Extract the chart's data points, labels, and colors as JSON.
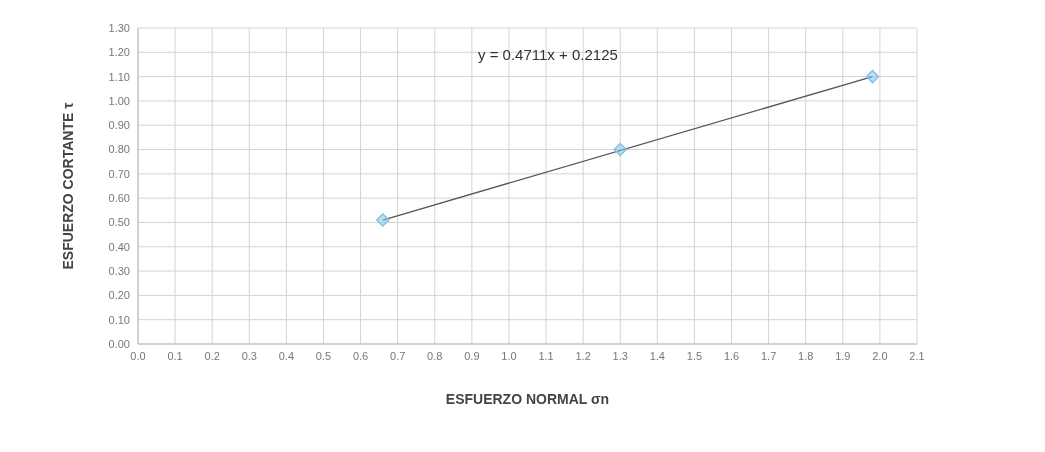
{
  "chart_data": {
    "type": "scatter",
    "xlabel": "ESFUERZO NORMAL σn",
    "ylabel": "ESFUERZO CORTANTE τ",
    "annotations": [
      "y = 0.4711x + 0.2125"
    ],
    "x": [
      0.66,
      1.3,
      1.98
    ],
    "series": [
      {
        "color": "#7fc4e8",
        "marker": "diamond",
        "values": [
          0.51,
          0.8,
          1.1
        ]
      },
      {
        "type": "line",
        "color": "#555555",
        "marker": "none",
        "x": [
          0.66,
          1.98
        ],
        "values": [
          0.51,
          1.1
        ]
      }
    ],
    "xlim": [
      0,
      2.1
    ],
    "ylim": [
      0,
      1.3
    ],
    "xticks": [
      {
        "value": 0,
        "label": "0.0"
      },
      0.1,
      0.2,
      0.3,
      0.4,
      0.5,
      0.6,
      0.7,
      0.8,
      0.9,
      {
        "value": 1,
        "label": "1.0"
      },
      1.1,
      1.2,
      1.3,
      1.4,
      1.5,
      1.6,
      1.7,
      1.8,
      1.9,
      {
        "value": 2,
        "label": "2.0"
      },
      2.1
    ],
    "yticks": [
      {
        "value": 0,
        "label": "0.00"
      },
      {
        "value": 0.1,
        "label": "0.10"
      },
      {
        "value": 0.2,
        "label": "0.20"
      },
      {
        "value": 0.3,
        "label": "0.30"
      },
      {
        "value": 0.4,
        "label": "0.40"
      },
      {
        "value": 0.5,
        "label": "0.50"
      },
      {
        "value": 0.6,
        "label": "0.60"
      },
      {
        "value": 0.7,
        "label": "0.70"
      },
      {
        "value": 0.8,
        "label": "0.80"
      },
      {
        "value": 0.9,
        "label": "0.90"
      },
      {
        "value": 1,
        "label": "1.00"
      },
      {
        "value": 1.1,
        "label": "1.10"
      },
      {
        "value": 1.2,
        "label": "1.20"
      },
      {
        "value": 1.3,
        "label": "1.30"
      }
    ],
    "grid": true,
    "legend": false
  }
}
